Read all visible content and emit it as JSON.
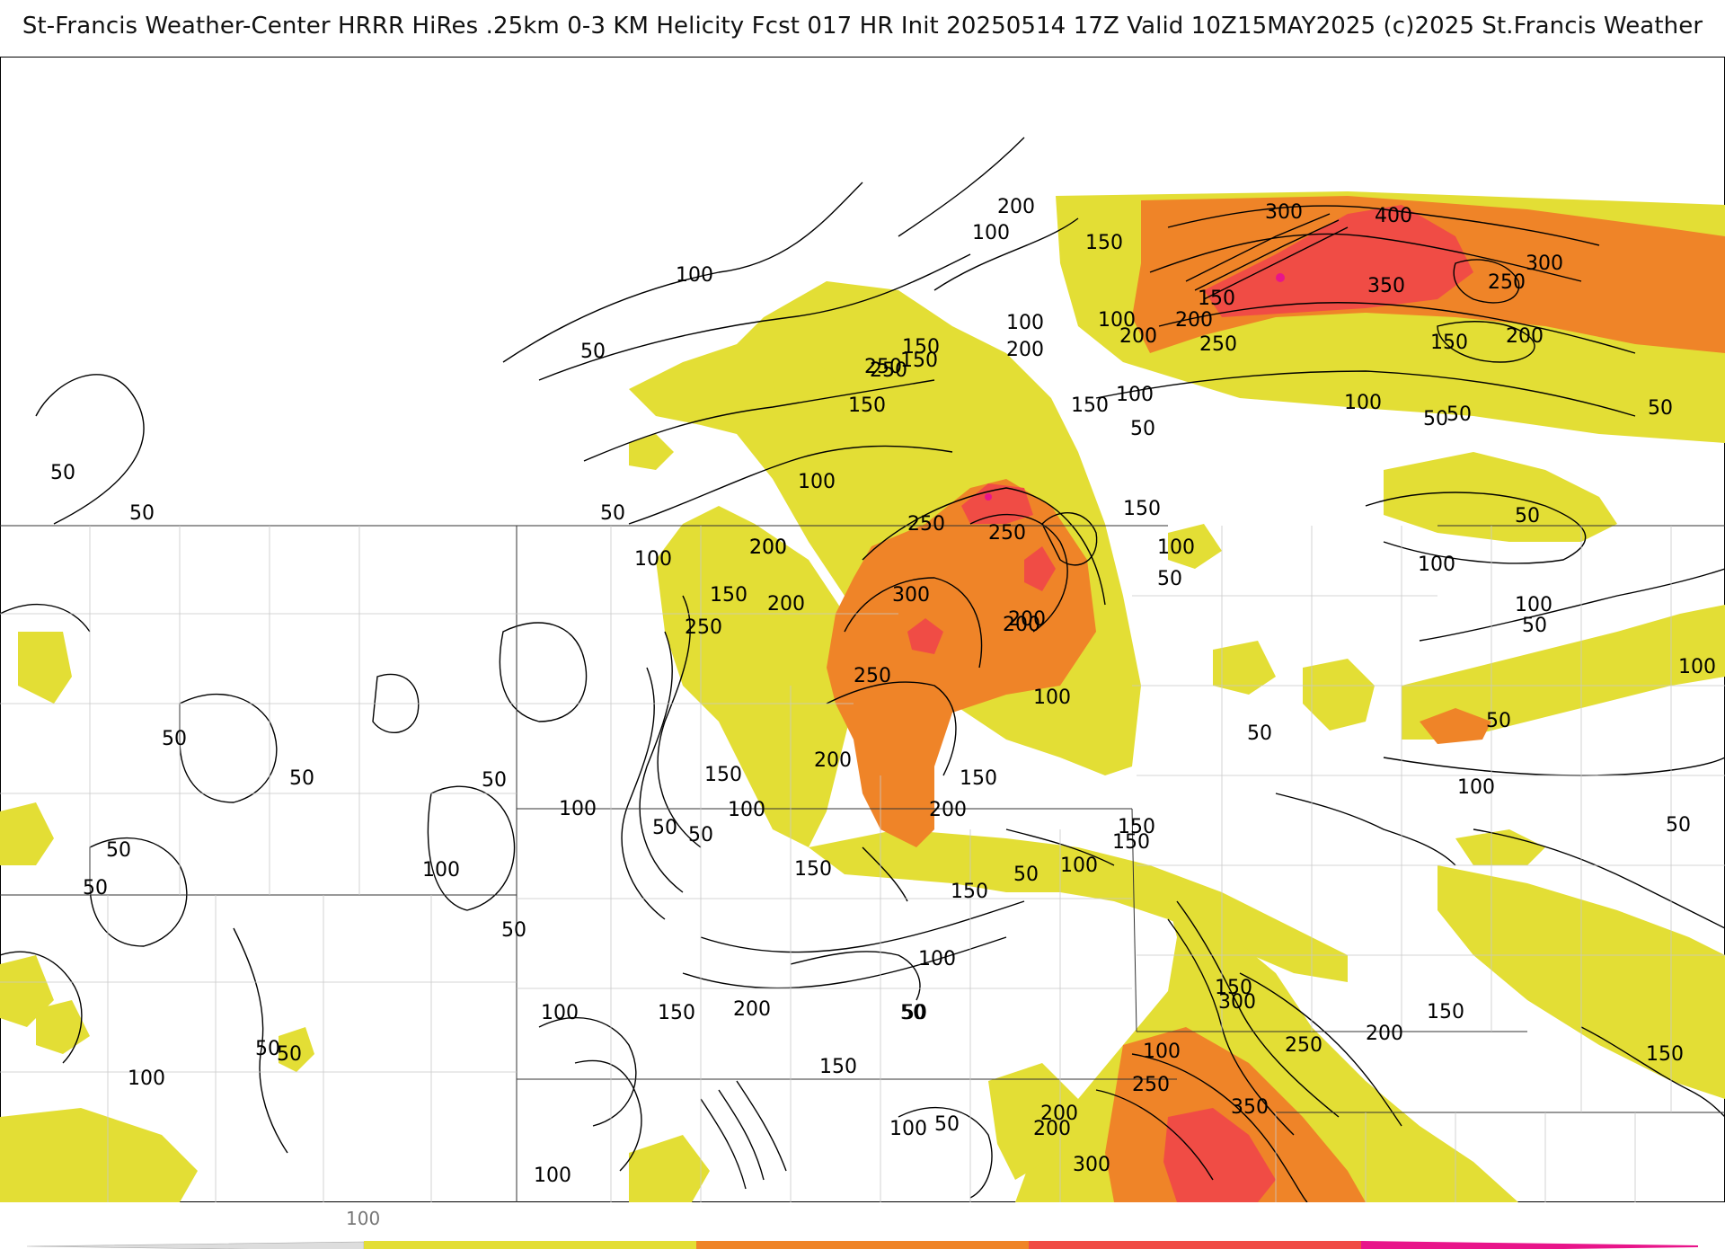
{
  "header": {
    "title": "St-Francis Weather-Center HRRR HiRes .25km 0-3 KM Helicity Fcst 017 HR Init 20250514 17Z  Valid 10Z15MAY2025    (c)2025 St.Francis Weather"
  },
  "legend": {
    "tick_label": "100",
    "colors": [
      "#e3de35",
      "#ef8428",
      "#f04c45",
      "#e8158a"
    ]
  },
  "contour_labels": [
    {
      "text": "200"
    },
    {
      "text": "100"
    },
    {
      "text": "150"
    },
    {
      "text": "300"
    },
    {
      "text": "400"
    },
    {
      "text": "300"
    },
    {
      "text": "350"
    },
    {
      "text": "250"
    },
    {
      "text": "100"
    },
    {
      "text": "50"
    },
    {
      "text": "150"
    },
    {
      "text": "200"
    },
    {
      "text": "200"
    },
    {
      "text": "250"
    },
    {
      "text": "150"
    },
    {
      "text": "200"
    },
    {
      "text": "250"
    },
    {
      "text": "100"
    },
    {
      "text": "150"
    },
    {
      "text": "50"
    },
    {
      "text": "100"
    },
    {
      "text": "50"
    },
    {
      "text": "150"
    },
    {
      "text": "200"
    },
    {
      "text": "150"
    },
    {
      "text": "100"
    },
    {
      "text": "50"
    },
    {
      "text": "50"
    },
    {
      "text": "100"
    },
    {
      "text": "250"
    },
    {
      "text": "250"
    },
    {
      "text": "150"
    },
    {
      "text": "100"
    },
    {
      "text": "50"
    },
    {
      "text": "50"
    },
    {
      "text": "100"
    },
    {
      "text": "200"
    },
    {
      "text": "300"
    },
    {
      "text": "200"
    },
    {
      "text": "150"
    },
    {
      "text": "250"
    },
    {
      "text": "200"
    },
    {
      "text": "100"
    },
    {
      "text": "100"
    },
    {
      "text": "50"
    },
    {
      "text": "100"
    },
    {
      "text": "50"
    },
    {
      "text": "250"
    },
    {
      "text": "50"
    },
    {
      "text": "50"
    },
    {
      "text": "200"
    },
    {
      "text": "150"
    },
    {
      "text": "200"
    },
    {
      "text": "100"
    },
    {
      "text": "100"
    },
    {
      "text": "50"
    },
    {
      "text": "50"
    },
    {
      "text": "200"
    },
    {
      "text": "150"
    },
    {
      "text": "250"
    },
    {
      "text": "200"
    },
    {
      "text": "150"
    },
    {
      "text": "100"
    },
    {
      "text": "150"
    },
    {
      "text": "50"
    },
    {
      "text": "100"
    },
    {
      "text": "50"
    },
    {
      "text": "100"
    },
    {
      "text": "50"
    },
    {
      "text": "50"
    },
    {
      "text": "150"
    },
    {
      "text": "100"
    },
    {
      "text": "50"
    },
    {
      "text": "50"
    },
    {
      "text": "50"
    },
    {
      "text": "50"
    },
    {
      "text": "100"
    },
    {
      "text": "150"
    },
    {
      "text": "150"
    },
    {
      "text": "50"
    },
    {
      "text": "300"
    },
    {
      "text": "250"
    },
    {
      "text": "200"
    },
    {
      "text": "150"
    },
    {
      "text": "100"
    },
    {
      "text": "150"
    },
    {
      "text": "200"
    },
    {
      "text": "50"
    },
    {
      "text": "100"
    },
    {
      "text": "150"
    },
    {
      "text": "150"
    },
    {
      "text": "100"
    },
    {
      "text": "50"
    },
    {
      "text": "100"
    },
    {
      "text": "50"
    },
    {
      "text": "150"
    },
    {
      "text": "50"
    },
    {
      "text": "100"
    },
    {
      "text": "200"
    },
    {
      "text": "250"
    },
    {
      "text": "350"
    },
    {
      "text": "300"
    },
    {
      "text": "200"
    },
    {
      "text": "100"
    },
    {
      "text": "50"
    },
    {
      "text": "50"
    }
  ]
}
